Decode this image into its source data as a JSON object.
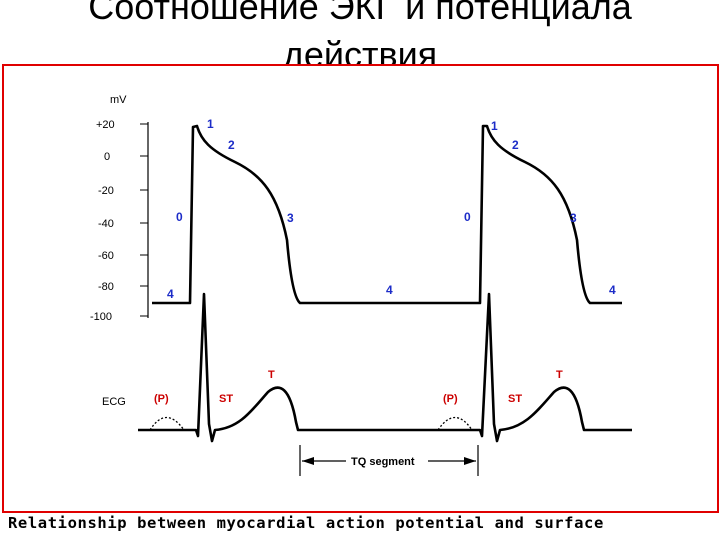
{
  "title": {
    "line1": "Соотношение ЭКГ и потенциала",
    "line2": "действия"
  },
  "diagram": {
    "y_unit": "mV",
    "y_ticks": [
      "+20",
      "0",
      "-20",
      "-40",
      "-60",
      "-80",
      "-100"
    ],
    "ecg_label": "ECG",
    "phase_labels": [
      "1",
      "2",
      "0",
      "3",
      "4",
      "4",
      "1",
      "2",
      "0",
      "3",
      "4"
    ],
    "ecg_wave_labels": [
      "(P)",
      "ST",
      "T",
      "(P)",
      "ST",
      "T"
    ],
    "segment_label": "TQ segment",
    "colors": {
      "frame": "#e00000",
      "phase_label": "#1c2cc8",
      "ecg_label": "#cc0000",
      "trace": "#000000"
    }
  },
  "caption": "Relationship between myocardial action potential and surface"
}
